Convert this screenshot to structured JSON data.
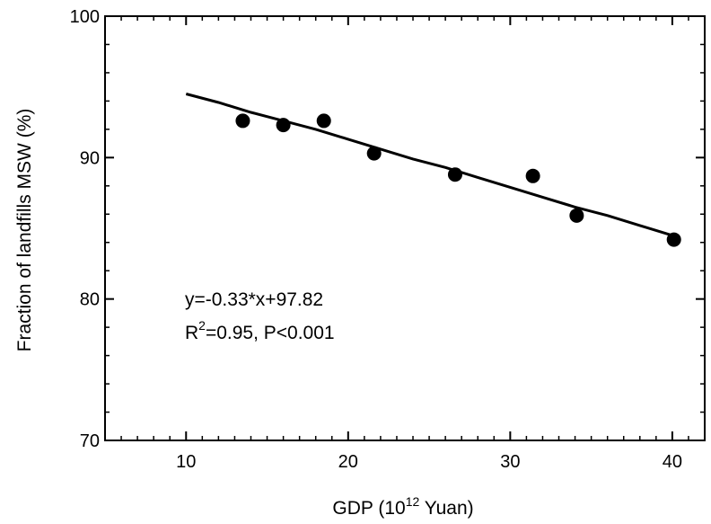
{
  "chart_data": {
    "type": "scatter",
    "xlabel_parts": [
      "GDP (10",
      "12",
      " Yuan)"
    ],
    "ylabel": "Fraction of landfills MSW (%)",
    "xlim": [
      5,
      42
    ],
    "ylim": [
      70,
      100
    ],
    "x_ticks": [
      10,
      20,
      30,
      40
    ],
    "y_ticks": [
      70,
      80,
      90,
      100
    ],
    "x_minor_step": 1,
    "y_minor_step": 2,
    "grid": false,
    "points": [
      {
        "x": 13.5,
        "y": 92.6
      },
      {
        "x": 16.0,
        "y": 92.3
      },
      {
        "x": 18.5,
        "y": 92.6
      },
      {
        "x": 21.6,
        "y": 90.3
      },
      {
        "x": 26.6,
        "y": 88.8
      },
      {
        "x": 31.4,
        "y": 88.7
      },
      {
        "x": 34.1,
        "y": 85.9
      },
      {
        "x": 40.1,
        "y": 84.2
      }
    ],
    "fit_line": [
      {
        "x": 10.0,
        "y": 94.5
      },
      {
        "x": 12.0,
        "y": 93.9
      },
      {
        "x": 14.0,
        "y": 93.2
      },
      {
        "x": 16.0,
        "y": 92.6
      },
      {
        "x": 18.0,
        "y": 92.0
      },
      {
        "x": 20.0,
        "y": 91.3
      },
      {
        "x": 22.0,
        "y": 90.6
      },
      {
        "x": 24.0,
        "y": 89.9
      },
      {
        "x": 26.0,
        "y": 89.3
      },
      {
        "x": 28.0,
        "y": 88.6
      },
      {
        "x": 30.0,
        "y": 87.9
      },
      {
        "x": 32.0,
        "y": 87.2
      },
      {
        "x": 34.0,
        "y": 86.5
      },
      {
        "x": 36.0,
        "y": 85.9
      },
      {
        "x": 38.0,
        "y": 85.2
      },
      {
        "x": 40.0,
        "y": 84.5
      }
    ],
    "annotation": {
      "equation": "y=-0.33*x+97.82",
      "r_prefix": "R",
      "r_superscript": "2",
      "r_rest": "=0.95, P<0.001"
    },
    "colors": {
      "marker": "#000000",
      "line": "#000000",
      "axis": "#000000"
    }
  }
}
